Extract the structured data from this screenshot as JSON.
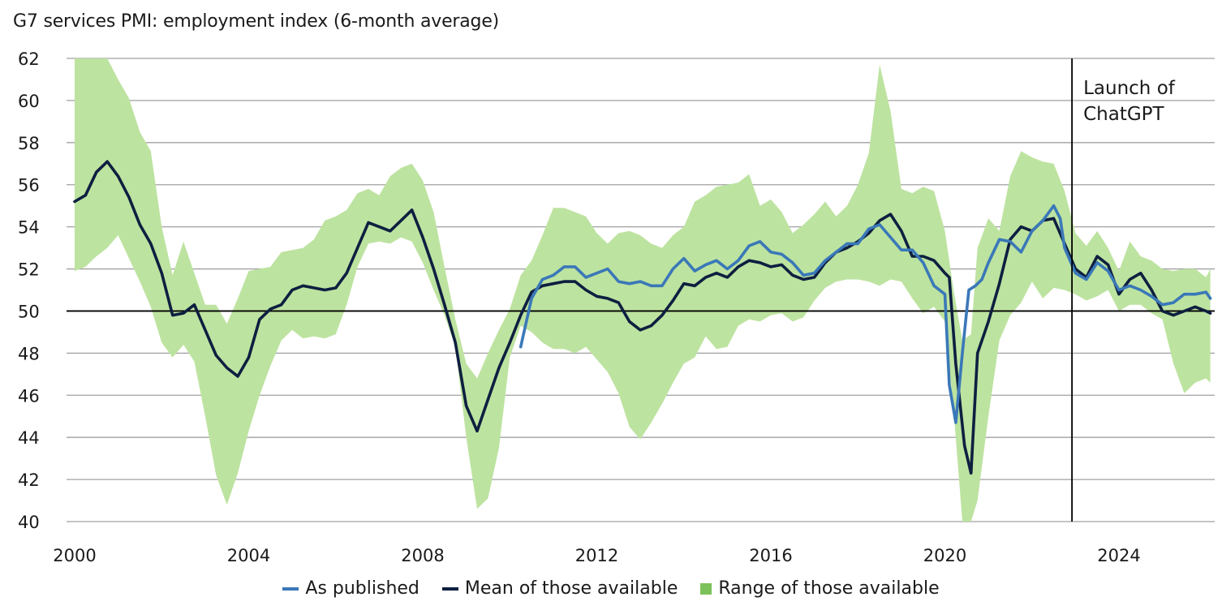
{
  "chart_data": {
    "type": "line",
    "title": "G7 services PMI: employment index (6-month average)",
    "xlabel": "",
    "ylabel": "",
    "xlim": [
      2000,
      2026.2
    ],
    "ylim": [
      40,
      62
    ],
    "yticks": [
      40,
      42,
      44,
      46,
      48,
      50,
      52,
      54,
      56,
      58,
      60,
      62
    ],
    "xticks": [
      2000,
      2004,
      2008,
      2012,
      2016,
      2020,
      2024
    ],
    "grid": true,
    "reference_line": {
      "y": 50
    },
    "annotation": {
      "x": 2022.92,
      "label_lines": [
        "Launch of",
        "ChatGPT"
      ]
    },
    "legend_position": "bottom",
    "colors": {
      "as_published": "#3a78b8",
      "mean": "#0e1f40",
      "range": "#bde3a0",
      "range_legend": "#7cc15a",
      "grid": "#a0a0a0",
      "axis": "#000000"
    },
    "series": [
      {
        "name": "As published",
        "x": [
          2010.25,
          2010.5,
          2010.75,
          2011.0,
          2011.25,
          2011.5,
          2011.75,
          2012.0,
          2012.25,
          2012.5,
          2012.75,
          2013.0,
          2013.25,
          2013.5,
          2013.75,
          2014.0,
          2014.25,
          2014.5,
          2014.75,
          2015.0,
          2015.25,
          2015.5,
          2015.75,
          2016.0,
          2016.25,
          2016.5,
          2016.75,
          2017.0,
          2017.25,
          2017.5,
          2017.75,
          2018.0,
          2018.25,
          2018.5,
          2018.75,
          2019.0,
          2019.25,
          2019.5,
          2019.75,
          2020.0,
          2020.1,
          2020.25,
          2020.4,
          2020.55,
          2020.7,
          2020.85,
          2021.0,
          2021.25,
          2021.5,
          2021.75,
          2022.0,
          2022.25,
          2022.5,
          2022.65,
          2022.75,
          2023.0,
          2023.25,
          2023.5,
          2023.75,
          2024.0,
          2024.25,
          2024.5,
          2024.75,
          2025.0,
          2025.25,
          2025.5,
          2025.75,
          2026.0,
          2026.1
        ],
        "values": [
          48.3,
          50.6,
          51.5,
          51.7,
          52.1,
          52.1,
          51.6,
          51.8,
          52.0,
          51.4,
          51.3,
          51.4,
          51.2,
          51.2,
          52.0,
          52.5,
          51.9,
          52.2,
          52.4,
          52.0,
          52.4,
          53.1,
          53.3,
          52.8,
          52.7,
          52.3,
          51.7,
          51.8,
          52.4,
          52.8,
          53.2,
          53.2,
          53.9,
          54.1,
          53.5,
          52.9,
          52.9,
          52.3,
          51.2,
          50.8,
          46.5,
          44.7,
          48.0,
          51.0,
          51.2,
          51.5,
          52.3,
          53.4,
          53.3,
          52.8,
          53.8,
          54.3,
          55.0,
          54.4,
          53.0,
          51.8,
          51.5,
          52.3,
          51.9,
          51.0,
          51.2,
          51.0,
          50.7,
          50.3,
          50.4,
          50.8,
          50.8,
          50.9,
          50.6
        ]
      },
      {
        "name": "Mean of those available",
        "x": [
          2000.0,
          2000.25,
          2000.5,
          2000.75,
          2001.0,
          2001.25,
          2001.5,
          2001.75,
          2002.0,
          2002.25,
          2002.5,
          2002.75,
          2003.0,
          2003.25,
          2003.5,
          2003.75,
          2004.0,
          2004.25,
          2004.5,
          2004.75,
          2005.0,
          2005.25,
          2005.5,
          2005.75,
          2006.0,
          2006.25,
          2006.5,
          2006.75,
          2007.0,
          2007.25,
          2007.5,
          2007.75,
          2008.0,
          2008.25,
          2008.5,
          2008.75,
          2009.0,
          2009.25,
          2009.5,
          2009.75,
          2010.0,
          2010.25,
          2010.5,
          2010.75,
          2011.0,
          2011.25,
          2011.5,
          2011.75,
          2012.0,
          2012.25,
          2012.5,
          2012.75,
          2013.0,
          2013.25,
          2013.5,
          2013.75,
          2014.0,
          2014.25,
          2014.5,
          2014.75,
          2015.0,
          2015.25,
          2015.5,
          2015.75,
          2016.0,
          2016.25,
          2016.5,
          2016.75,
          2017.0,
          2017.25,
          2017.5,
          2017.75,
          2018.0,
          2018.25,
          2018.5,
          2018.75,
          2019.0,
          2019.25,
          2019.5,
          2019.75,
          2020.0,
          2020.1,
          2020.25,
          2020.45,
          2020.6,
          2020.75,
          2021.0,
          2021.25,
          2021.5,
          2021.75,
          2022.0,
          2022.25,
          2022.5,
          2022.75,
          2023.0,
          2023.25,
          2023.5,
          2023.75,
          2024.0,
          2024.25,
          2024.5,
          2024.75,
          2025.0,
          2025.25,
          2025.5,
          2025.75,
          2026.0,
          2026.1
        ],
        "values": [
          55.2,
          55.5,
          56.6,
          57.1,
          56.4,
          55.4,
          54.1,
          53.2,
          51.8,
          49.8,
          49.9,
          50.3,
          49.1,
          47.9,
          47.3,
          46.9,
          47.8,
          49.6,
          50.1,
          50.3,
          51.0,
          51.2,
          51.1,
          51.0,
          51.1,
          51.8,
          53.0,
          54.2,
          54.0,
          53.8,
          54.3,
          54.8,
          53.5,
          52.0,
          50.3,
          48.5,
          45.5,
          44.3,
          45.8,
          47.3,
          48.5,
          49.8,
          50.9,
          51.2,
          51.3,
          51.4,
          51.4,
          51.0,
          50.7,
          50.6,
          50.4,
          49.5,
          49.1,
          49.3,
          49.8,
          50.5,
          51.3,
          51.2,
          51.6,
          51.8,
          51.6,
          52.1,
          52.4,
          52.3,
          52.1,
          52.2,
          51.7,
          51.5,
          51.6,
          52.3,
          52.8,
          53.0,
          53.3,
          53.7,
          54.3,
          54.6,
          53.8,
          52.6,
          52.6,
          52.4,
          51.8,
          51.6,
          47.5,
          43.6,
          42.3,
          48.0,
          49.5,
          51.3,
          53.4,
          54.0,
          53.8,
          54.3,
          54.4,
          53.2,
          52.0,
          51.6,
          52.6,
          52.2,
          50.8,
          51.5,
          51.8,
          51.0,
          50.0,
          49.8,
          50.0,
          50.2,
          50.0,
          49.9
        ]
      },
      {
        "name": "Range of those available",
        "x": [
          2000.0,
          2000.25,
          2000.5,
          2000.75,
          2001.0,
          2001.25,
          2001.5,
          2001.75,
          2002.0,
          2002.25,
          2002.5,
          2002.75,
          2003.0,
          2003.25,
          2003.5,
          2003.75,
          2004.0,
          2004.25,
          2004.5,
          2004.75,
          2005.0,
          2005.25,
          2005.5,
          2005.75,
          2006.0,
          2006.25,
          2006.5,
          2006.75,
          2007.0,
          2007.25,
          2007.5,
          2007.75,
          2008.0,
          2008.25,
          2008.5,
          2008.75,
          2009.0,
          2009.25,
          2009.5,
          2009.75,
          2010.0,
          2010.25,
          2010.5,
          2010.75,
          2011.0,
          2011.25,
          2011.5,
          2011.75,
          2012.0,
          2012.25,
          2012.5,
          2012.75,
          2013.0,
          2013.25,
          2013.5,
          2013.75,
          2014.0,
          2014.25,
          2014.5,
          2014.75,
          2015.0,
          2015.25,
          2015.5,
          2015.75,
          2016.0,
          2016.25,
          2016.5,
          2016.75,
          2017.0,
          2017.25,
          2017.5,
          2017.75,
          2018.0,
          2018.25,
          2018.5,
          2018.75,
          2019.0,
          2019.25,
          2019.5,
          2019.75,
          2020.0,
          2020.2,
          2020.4,
          2020.6,
          2020.75,
          2021.0,
          2021.25,
          2021.5,
          2021.75,
          2022.0,
          2022.25,
          2022.5,
          2022.75,
          2023.0,
          2023.25,
          2023.5,
          2023.75,
          2024.0,
          2024.25,
          2024.5,
          2024.75,
          2025.0,
          2025.25,
          2025.5,
          2025.75,
          2026.0,
          2026.1
        ],
        "low": [
          51.9,
          52.1,
          52.6,
          53.0,
          53.6,
          52.5,
          51.4,
          50.2,
          48.5,
          47.8,
          48.4,
          47.6,
          45.0,
          42.2,
          40.8,
          42.3,
          44.3,
          46.0,
          47.4,
          48.6,
          49.1,
          48.7,
          48.8,
          48.7,
          48.9,
          50.3,
          52.1,
          53.2,
          53.3,
          53.2,
          53.5,
          53.3,
          52.3,
          51.0,
          49.8,
          48.3,
          44.0,
          40.6,
          41.1,
          43.5,
          47.8,
          49.3,
          49.0,
          48.5,
          48.2,
          48.2,
          48.0,
          48.3,
          47.7,
          47.1,
          46.1,
          44.5,
          43.9,
          44.7,
          45.6,
          46.6,
          47.5,
          47.8,
          48.8,
          48.2,
          48.3,
          49.3,
          49.6,
          49.5,
          49.8,
          49.9,
          49.5,
          49.7,
          50.5,
          51.1,
          51.4,
          51.5,
          51.5,
          51.4,
          51.2,
          51.5,
          51.4,
          50.6,
          49.9,
          50.2,
          49.5,
          45.3,
          40.0,
          40.0,
          41.0,
          45.0,
          48.6,
          49.8,
          50.4,
          51.4,
          50.6,
          51.1,
          51.0,
          50.8,
          50.5,
          50.7,
          51.0,
          50.0,
          50.3,
          50.3,
          49.9,
          49.6,
          47.5,
          46.1,
          46.6,
          46.8,
          46.6,
          46.6
        ],
        "high": [
          62.0,
          62.0,
          62.0,
          62.0,
          61.0,
          60.1,
          58.5,
          57.6,
          54.0,
          51.7,
          53.3,
          51.8,
          50.3,
          50.3,
          49.4,
          50.6,
          51.9,
          52.0,
          52.1,
          52.8,
          52.9,
          53.0,
          53.4,
          54.3,
          54.5,
          54.8,
          55.6,
          55.8,
          55.5,
          56.4,
          56.8,
          57.0,
          56.2,
          54.7,
          52.1,
          49.6,
          47.5,
          46.8,
          48.0,
          49.1,
          50.1,
          51.7,
          52.4,
          53.6,
          54.9,
          54.9,
          54.7,
          54.5,
          53.7,
          53.2,
          53.7,
          53.8,
          53.6,
          53.2,
          53.0,
          53.6,
          54.0,
          55.2,
          55.5,
          55.9,
          56.0,
          56.1,
          56.5,
          55.0,
          55.3,
          54.7,
          53.7,
          54.1,
          54.6,
          55.2,
          54.5,
          55.0,
          56.0,
          57.5,
          61.7,
          59.5,
          55.8,
          55.6,
          55.9,
          55.7,
          53.8,
          51.0,
          48.6,
          48.9,
          53.0,
          54.4,
          53.8,
          56.4,
          57.6,
          57.3,
          57.1,
          57.0,
          55.7,
          53.7,
          53.1,
          53.8,
          53.0,
          51.9,
          53.3,
          52.6,
          52.4,
          52.0,
          51.9,
          52.0,
          52.0,
          51.6,
          52.0
        ]
      }
    ],
    "legend": [
      {
        "label": "As published",
        "type": "line",
        "series": "As published"
      },
      {
        "label": "Mean of those available",
        "type": "line",
        "series": "Mean of those available"
      },
      {
        "label": "Range of those available",
        "type": "area",
        "series": "Range of those available"
      }
    ]
  }
}
